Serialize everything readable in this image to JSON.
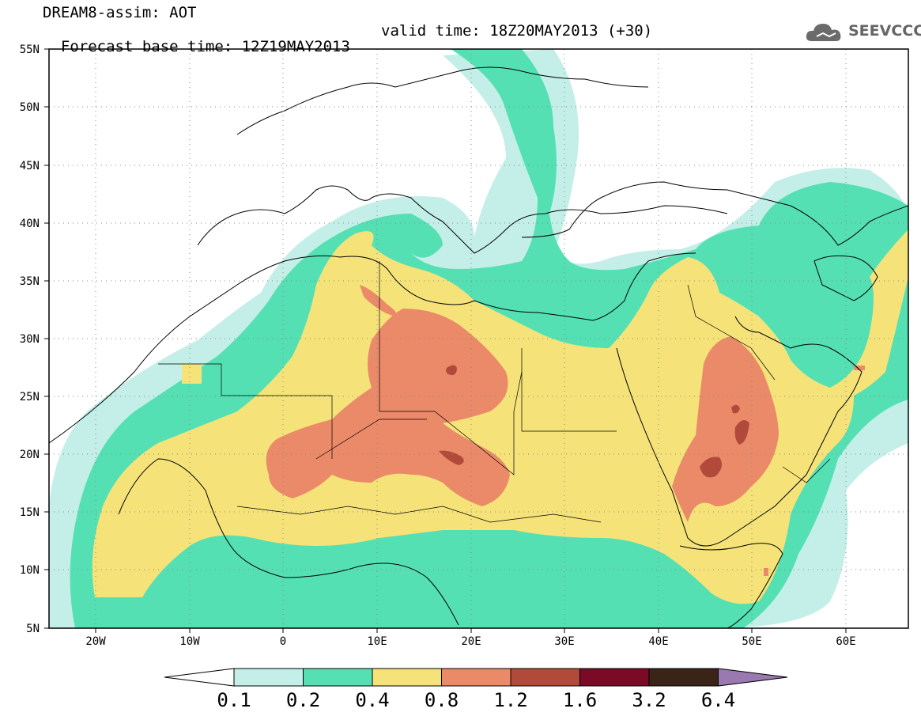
{
  "header": {
    "title": "DREAM8-assim: AOT",
    "base_time": "Forecast base time: 12Z19MAY2013",
    "valid_time": "valid time: 18Z20MAY2013 (+30)",
    "logo_text": "SEEVCCC"
  },
  "map": {
    "lon_range": [
      -25,
      65
    ],
    "lat_range": [
      5,
      55
    ],
    "lat_labels": [
      "55N",
      "50N",
      "45N",
      "40N",
      "35N",
      "30N",
      "25N",
      "20N",
      "15N",
      "10N",
      "5N"
    ],
    "lon_labels": [
      "20W",
      "10W",
      "0",
      "10E",
      "20E",
      "30E",
      "40E",
      "50E",
      "60E"
    ],
    "gridlines": "dotted"
  },
  "colorbar": {
    "levels": [
      "0.1",
      "0.2",
      "0.4",
      "0.8",
      "1.2",
      "1.6",
      "3.2",
      "6.4"
    ],
    "colors": [
      "#c3efe8",
      "#55e0b4",
      "#f5e37a",
      "#ea8a68",
      "#b24a3c",
      "#7a0a26",
      "#3a2418",
      "#9a78b0"
    ],
    "under_color": "#ffffff",
    "over_color": "#9a78b0"
  }
}
